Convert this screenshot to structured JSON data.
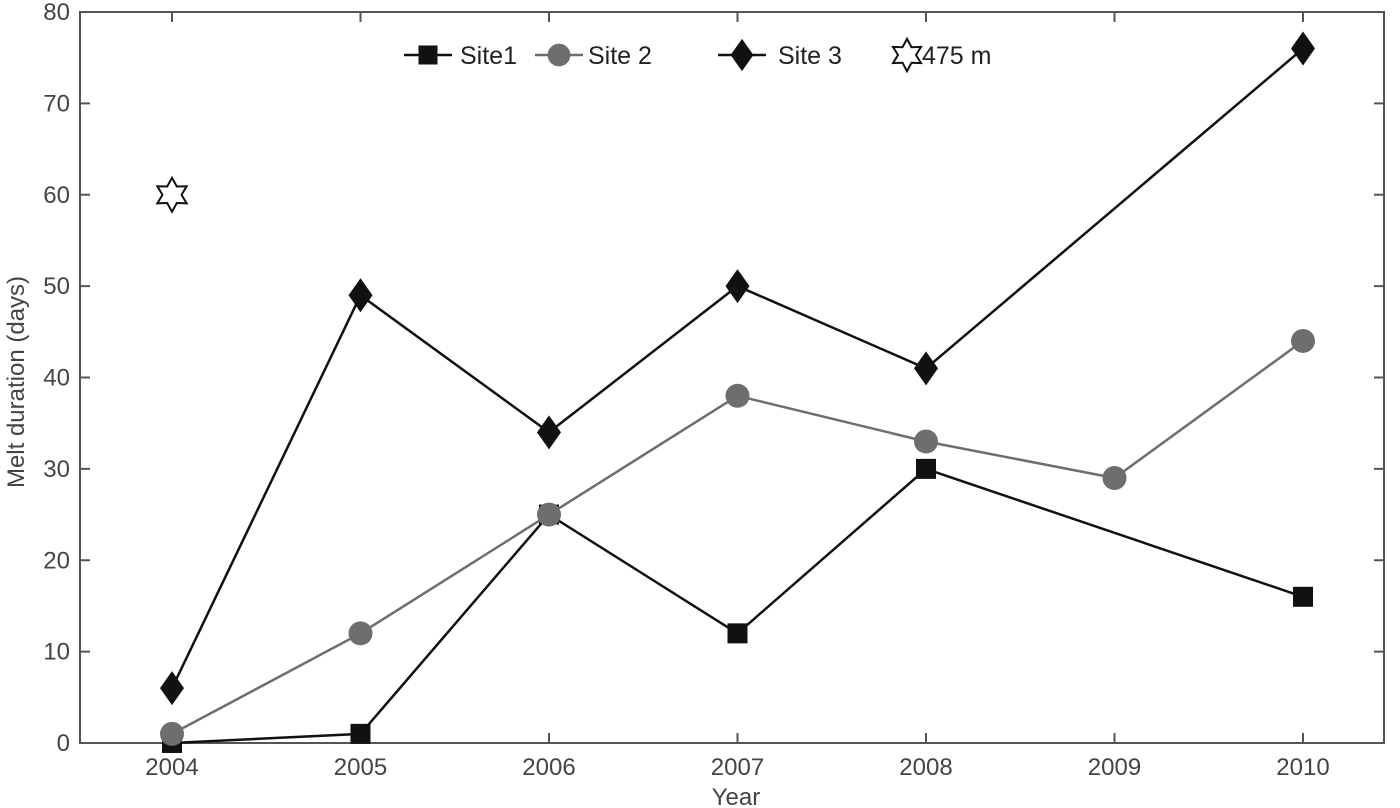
{
  "chart_data": {
    "type": "line",
    "title": "",
    "xlabel": "Year",
    "ylabel": "Melt duration (days)",
    "xlim": [
      2003.5,
      2010.5
    ],
    "ylim": [
      0,
      80
    ],
    "x_ticks": [
      "2004",
      "2005",
      "2006",
      "2007",
      "2008",
      "2009",
      "2010"
    ],
    "y_ticks": [
      "0",
      "10",
      "20",
      "30",
      "40",
      "50",
      "60",
      "70",
      "80"
    ],
    "grid": false,
    "legend_position": "top",
    "series": [
      {
        "name": "Site1",
        "marker": "square",
        "color": "#111111",
        "points": [
          [
            2004,
            0
          ],
          [
            2005,
            1
          ],
          [
            2006,
            25
          ],
          [
            2007,
            12
          ],
          [
            2008,
            30
          ],
          [
            2010,
            16
          ]
        ]
      },
      {
        "name": "Site 2",
        "marker": "circle",
        "color": "#6e6e6e",
        "points": [
          [
            2004,
            1
          ],
          [
            2005,
            12
          ],
          [
            2006,
            25
          ],
          [
            2007,
            38
          ],
          [
            2008,
            33
          ],
          [
            2009,
            29
          ],
          [
            2010,
            44
          ]
        ]
      },
      {
        "name": "Site 3",
        "marker": "diamond",
        "color": "#111111",
        "points": [
          [
            2004,
            6
          ],
          [
            2005,
            49
          ],
          [
            2006,
            34
          ],
          [
            2007,
            50
          ],
          [
            2008,
            41
          ],
          [
            2010,
            76
          ]
        ]
      },
      {
        "name": "475 m",
        "marker": "hexagram",
        "color": "#111111",
        "line": false,
        "points": [
          [
            2004,
            60
          ]
        ]
      }
    ]
  }
}
